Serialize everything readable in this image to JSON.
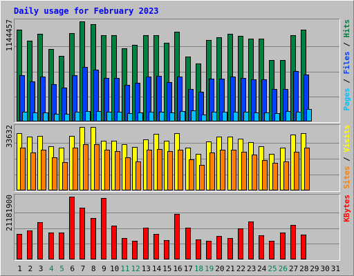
{
  "title": "Daily usage for February 2023",
  "days": [
    "1",
    "2",
    "3",
    "4",
    "5",
    "6",
    "7",
    "8",
    "9",
    "10",
    "11",
    "12",
    "13",
    "14",
    "15",
    "16",
    "17",
    "18",
    "19",
    "20",
    "21",
    "22",
    "23",
    "24",
    "25",
    "26",
    "27",
    "28",
    "29",
    "30",
    "31"
  ],
  "weekend_days": [
    "4",
    "5",
    "11",
    "12",
    "18",
    "19",
    "25",
    "26"
  ],
  "colors": {
    "hits": "#008040",
    "files": "#0040ff",
    "pages": "#00c0ff",
    "visits": "#ffff00",
    "sites": "#ff8000",
    "kbytes": "#ff0000",
    "weekend_label": "#00805c",
    "weekday_label": "#000000",
    "title": "#0000ff"
  },
  "chart_data": [
    {
      "type": "bar",
      "name": "hits-files-pages",
      "ymax_label": "1144457",
      "ylim": [
        0,
        1144457
      ],
      "right_labels": [
        {
          "text": "Pages",
          "color": "#00c0ff"
        },
        {
          "text": " / ",
          "color": "#000000"
        },
        {
          "text": "Files",
          "color": "#0040ff"
        },
        {
          "text": " / ",
          "color": "#000000"
        },
        {
          "text": "Hits",
          "color": "#008040"
        }
      ],
      "series": [
        {
          "key": "hits",
          "values": [
            1050000,
            920000,
            1000000,
            830000,
            750000,
            1010000,
            1144457,
            1110000,
            990000,
            990000,
            840000,
            880000,
            990000,
            990000,
            900000,
            1030000,
            740000,
            660000,
            930000,
            960000,
            1000000,
            980000,
            950000,
            950000,
            700000,
            700000,
            990000,
            1050000
          ]
        },
        {
          "key": "files",
          "values": [
            530000,
            460000,
            510000,
            430000,
            390000,
            530000,
            620000,
            590000,
            500000,
            500000,
            420000,
            440000,
            510000,
            520000,
            450000,
            510000,
            370000,
            340000,
            490000,
            490000,
            510000,
            500000,
            480000,
            480000,
            370000,
            370000,
            580000,
            540000
          ]
        },
        {
          "key": "pages",
          "values": [
            110000,
            100000,
            100000,
            90000,
            90000,
            110000,
            120000,
            120000,
            110000,
            110000,
            95000,
            100000,
            110000,
            110000,
            100000,
            115000,
            130000,
            80000,
            110000,
            110000,
            110000,
            110000,
            105000,
            105000,
            95000,
            120000,
            110000,
            140000
          ]
        }
      ]
    },
    {
      "type": "bar",
      "name": "visits-sites",
      "ymax_label": "33632",
      "ylim": [
        0,
        33632
      ],
      "right_labels": [
        {
          "text": "Sites",
          "color": "#ff8000"
        },
        {
          "text": " / ",
          "color": "#000000"
        },
        {
          "text": "Visits",
          "color": "#ffff00"
        }
      ],
      "series": [
        {
          "key": "visits",
          "values": [
            30500,
            28500,
            29000,
            23500,
            22500,
            29000,
            33632,
            33632,
            26500,
            26500,
            24500,
            23000,
            27000,
            30000,
            26500,
            30500,
            22500,
            19500,
            26000,
            28500,
            28500,
            27500,
            25500,
            23500,
            19500,
            22500,
            29500,
            30500
          ]
        },
        {
          "key": "sites",
          "values": [
            22500,
            20000,
            21500,
            17500,
            15000,
            22500,
            24500,
            24500,
            21500,
            21000,
            17500,
            15500,
            21500,
            22000,
            21000,
            21500,
            16500,
            13500,
            20000,
            21500,
            21500,
            20500,
            19000,
            16000,
            14500,
            15500,
            20500,
            22500
          ]
        }
      ]
    },
    {
      "type": "bar",
      "name": "kbytes",
      "ymax_label": "21181900",
      "ylim": [
        0,
        21181900
      ],
      "right_labels": [
        {
          "text": "KBytes",
          "color": "#ff0000"
        }
      ],
      "series": [
        {
          "key": "kbytes",
          "values": [
            8700000,
            9800000,
            12600000,
            9100000,
            9000000,
            21181900,
            17500000,
            13900000,
            20600000,
            11500000,
            7200000,
            6400000,
            10800000,
            8700000,
            6500000,
            15400000,
            10700000,
            6800000,
            6200000,
            7900000,
            7200000,
            10500000,
            12900000,
            8200000,
            6400000,
            9100000,
            11600000,
            8400000
          ]
        }
      ]
    }
  ]
}
